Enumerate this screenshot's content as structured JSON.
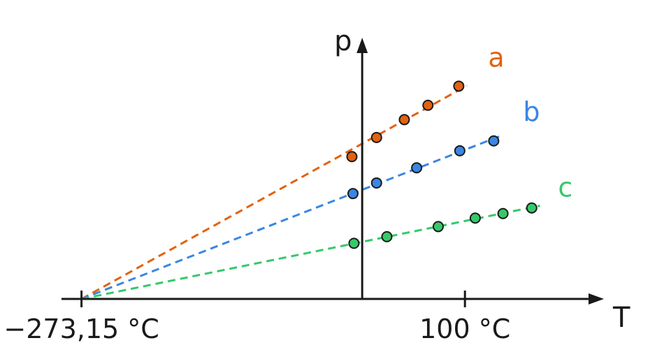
{
  "chart_data": {
    "type": "scatter",
    "xlabel": "T",
    "ylabel": "p",
    "x_unit": "°C",
    "xlim": [
      -292.6,
      225.7
    ],
    "ylim": [
      0,
      9.4
    ],
    "x_ticks": [
      {
        "value": -273.15,
        "label": "−273,15 °C"
      },
      {
        "value": 100,
        "label": "100 °C"
      }
    ],
    "colors": {
      "a": "#e2620f",
      "b": "#3a86e3",
      "c": "#35c96a",
      "axis": "#1a1a1a"
    },
    "series": [
      {
        "name": "a",
        "label_at_x": 128,
        "points": [
          {
            "x": -10,
            "y": 5.35
          },
          {
            "x": 14,
            "y": 6.07
          },
          {
            "x": 41,
            "y": 6.74
          },
          {
            "x": 64,
            "y": 7.28
          },
          {
            "x": 94,
            "y": 8.0
          }
        ]
      },
      {
        "name": "b",
        "label_at_x": 162,
        "points": [
          {
            "x": -9,
            "y": 3.96
          },
          {
            "x": 14,
            "y": 4.36
          },
          {
            "x": 53,
            "y": 4.93
          },
          {
            "x": 95,
            "y": 5.57
          },
          {
            "x": 128,
            "y": 5.94
          }
        ]
      },
      {
        "name": "c",
        "label_at_x": 196,
        "points": [
          {
            "x": -8,
            "y": 2.09
          },
          {
            "x": 24,
            "y": 2.34
          },
          {
            "x": 74,
            "y": 2.72
          },
          {
            "x": 110,
            "y": 3.04
          },
          {
            "x": 137,
            "y": 3.21
          },
          {
            "x": 165,
            "y": 3.42
          }
        ]
      }
    ],
    "grid": false,
    "legend": "inline-right"
  }
}
